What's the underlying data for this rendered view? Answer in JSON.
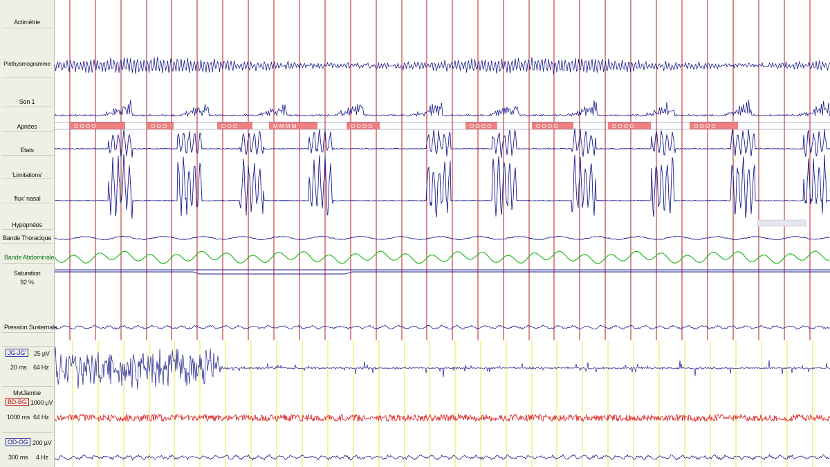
{
  "channels": {
    "actimetrie": "Actimétrie",
    "plethysmogramme": "Pléthysmogramme",
    "son": "Son 1",
    "apnees": "Apnées",
    "etats": "Etats",
    "limitations": "'Limitations'",
    "flux_nasal": "'flux' nasal",
    "hypopnees": "Hypopnées",
    "bande_thoracique": "Bande Thoracique",
    "bande_abdominale": "Bande Abdominale",
    "saturation": "Saturation",
    "saturation_value": "92 %",
    "pression": "Pression Susternale",
    "jg_label": "JG-JG'",
    "jg_gain": "25 µV",
    "jg_time": "20 ms",
    "jg_freq": "64 Hz",
    "mvt_jambe": "MvtJambe",
    "bd_label": "BD-BG",
    "bd_gain": "1000 µV",
    "bd_time": "1000 ms",
    "bd_freq": "64 Hz",
    "od_label": "OD-OG",
    "od_gain": "200 µV",
    "od_time": "300 ms",
    "od_freq": "4 Hz"
  },
  "colors": {
    "trace": "#1a1a8c",
    "abdominal": "#22bb22",
    "leg": "#dd1111",
    "event_marker": "#b81818",
    "emg_marker": "#e8e840",
    "apnea_bar": "#f08080"
  },
  "apnea_events": [
    {
      "codes": "O  O  O  O"
    },
    {
      "codes": "O  O  O"
    },
    {
      "codes": "O  O  O"
    },
    {
      "codes": "M  M  M  M"
    },
    {
      "codes": "O  O  O  O"
    },
    {
      "codes": "O  O  O  O"
    },
    {
      "codes": "O  O  O  O"
    },
    {
      "codes": "O  O  O  O"
    },
    {
      "codes": "O  O  O  O"
    },
    {
      "codes": "O  O  O  O"
    }
  ]
}
